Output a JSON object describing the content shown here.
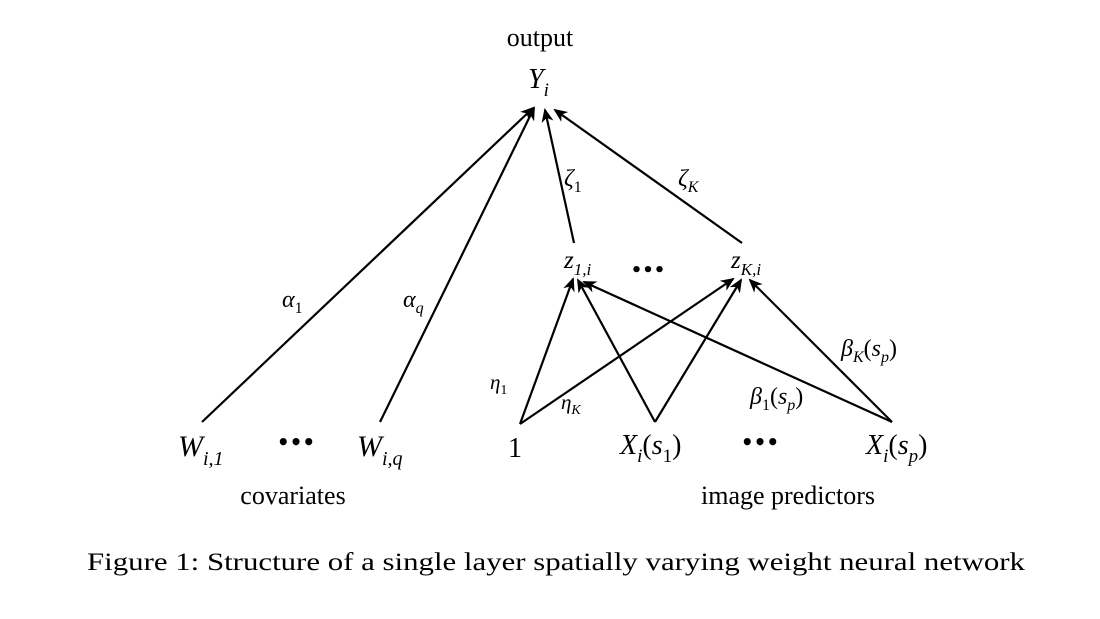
{
  "figure": {
    "output_label": "output",
    "covariates_label": "covariates",
    "image_predictors_label": "image predictors",
    "caption": "Figure 1: Structure of a single layer spatially varying weight neural network"
  },
  "nodes": {
    "y": {
      "base": "Y",
      "sub": "i"
    },
    "z1": {
      "base": "z",
      "sub": "1,i"
    },
    "zk": {
      "base": "z",
      "sub": "K,i"
    },
    "w1": {
      "base": "W",
      "sub": "i,1"
    },
    "wq": {
      "base": "W",
      "sub": "i,q"
    },
    "one": {
      "text": "1"
    },
    "x1": {
      "base": "X",
      "sub": "i",
      "arg_open": "(",
      "arg_base": "s",
      "arg_sub": "1",
      "arg_close": ")"
    },
    "xp": {
      "base": "X",
      "sub": "i",
      "arg_open": "(",
      "arg_base": "s",
      "arg_sub": "p",
      "arg_close": ")"
    }
  },
  "ellipses": {
    "hidden": "•••",
    "covariates": "•••",
    "image": "•••"
  },
  "edge_labels": {
    "alpha1": {
      "base": "α",
      "sub": "1"
    },
    "alphaq": {
      "base": "α",
      "sub": "q"
    },
    "zeta1": {
      "base": "ζ",
      "sub": "1"
    },
    "zetak": {
      "base": "ζ",
      "sub": "K"
    },
    "eta1": {
      "base": "η",
      "sub": "1"
    },
    "etak": {
      "base": "η",
      "sub": "K"
    },
    "betak": {
      "base": "β",
      "sub": "K",
      "arg_open": "(",
      "arg_base": "s",
      "arg_sub": "p",
      "arg_close": ")"
    },
    "beta1": {
      "base": "β",
      "sub": "1",
      "arg_open": "(",
      "arg_base": "s",
      "arg_sub": "p",
      "arg_close": ")"
    }
  }
}
